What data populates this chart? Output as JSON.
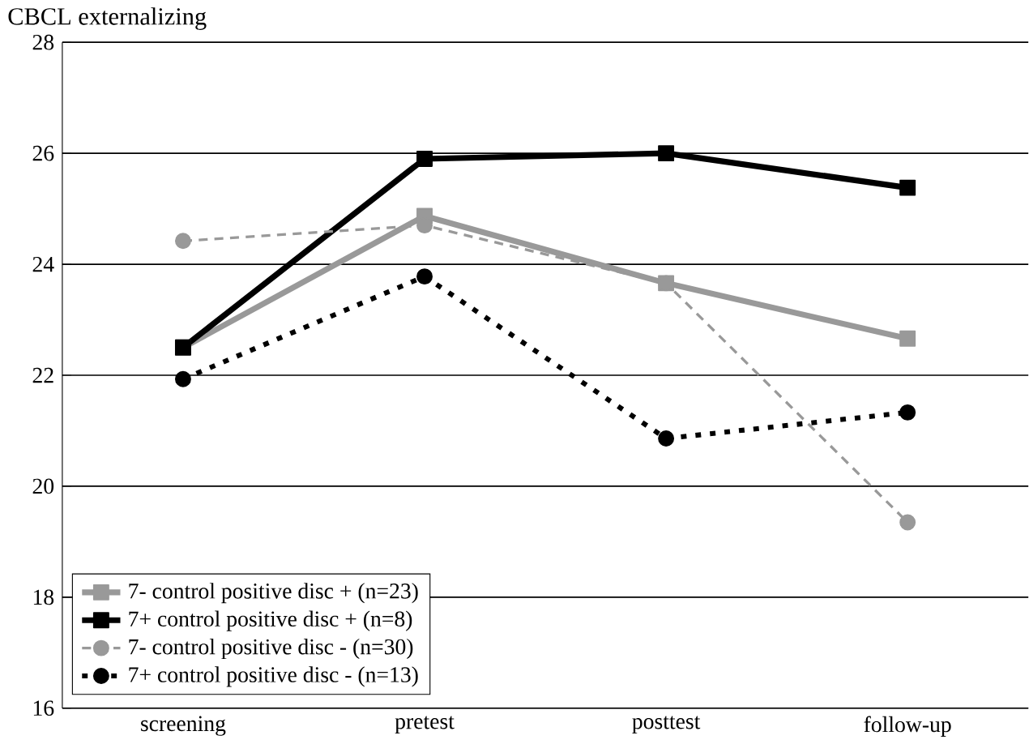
{
  "chart_data": {
    "type": "line",
    "ylabel": "CBCL externalizing",
    "categories": [
      "screening",
      "pretest",
      "posttest",
      "follow-up"
    ],
    "series": [
      {
        "name": "7- control positive disc + (n=23)",
        "color": "#999999",
        "marker": "square",
        "line_style": "solid",
        "values": [
          22.5,
          24.87,
          23.66,
          22.66
        ]
      },
      {
        "name": "7+ control positive disc + (n=8)",
        "color": "#000000",
        "marker": "square",
        "line_style": "solid",
        "values": [
          22.5,
          25.9,
          26.0,
          25.38
        ]
      },
      {
        "name": "7- control positive disc - (n=30)",
        "color": "#999999",
        "marker": "circle",
        "line_style": "dashed",
        "values": [
          24.42,
          24.7,
          23.66,
          19.35
        ]
      },
      {
        "name": "7+ control positive disc - (n=13)",
        "color": "#000000",
        "marker": "circle",
        "line_style": "dotted",
        "values": [
          21.93,
          23.78,
          20.86,
          21.33
        ]
      }
    ],
    "ylim": [
      16,
      28
    ],
    "yticks": [
      16,
      18,
      20,
      22,
      24,
      26,
      28
    ],
    "grid": "y",
    "legend": "bottom left"
  }
}
